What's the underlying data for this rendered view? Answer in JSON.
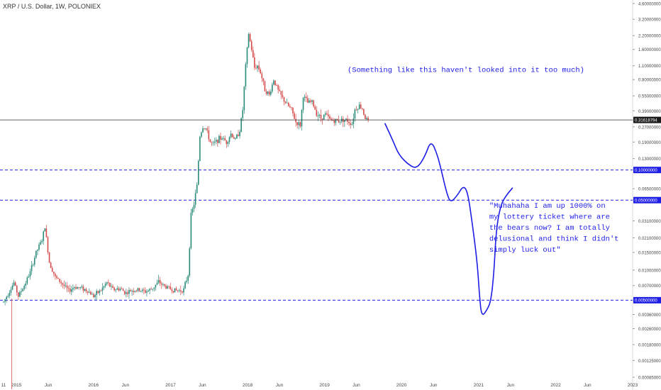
{
  "chart_data": {
    "type": "candlestick",
    "title": "XRP / U.S. Dollar, 1W, POLONIEX",
    "y_scale": "log",
    "ylim": [
      0.00085,
      4.6
    ],
    "xlim": [
      "2014-10-15",
      "2023-01-01"
    ],
    "y_ticks": [
      "4.60000000",
      "3.20000000",
      "2.20000000",
      "1.60000000",
      "1.10000000",
      "0.80000000",
      "0.55000000",
      "0.39000000",
      "0.27000000",
      "0.19000000",
      "0.13000000",
      "0.06500000",
      "0.03100000",
      "0.02100000",
      "0.01500000",
      "0.01000000",
      "0.00700000",
      "0.00360000",
      "0.00260000",
      "0.00180000",
      "0.00125000",
      "0.00085000"
    ],
    "x_ticks": [
      {
        "label": "11",
        "date": "2014-11-01"
      },
      {
        "label": "2015",
        "date": "2015-01-01"
      },
      {
        "label": "Jun",
        "date": "2015-06-01"
      },
      {
        "label": "2016",
        "date": "2016-01-01"
      },
      {
        "label": "Jun",
        "date": "2016-06-01"
      },
      {
        "label": "2017",
        "date": "2017-01-01"
      },
      {
        "label": "Jun",
        "date": "2017-06-01"
      },
      {
        "label": "2018",
        "date": "2018-01-01"
      },
      {
        "label": "Jun",
        "date": "2018-06-01"
      },
      {
        "label": "2019",
        "date": "2019-01-01"
      },
      {
        "label": "Jun",
        "date": "2019-06-01"
      },
      {
        "label": "2020",
        "date": "2020-01-01"
      },
      {
        "label": "Jun",
        "date": "2020-06-01"
      },
      {
        "label": "2021",
        "date": "2021-01-01"
      },
      {
        "label": "Jun",
        "date": "2021-06-01"
      },
      {
        "label": "2022",
        "date": "2022-01-01"
      },
      {
        "label": "Jun",
        "date": "2022-06-01"
      },
      {
        "label": "2023",
        "date": "2023-01-01"
      }
    ],
    "current_price": {
      "value": 0.31618794,
      "label": "0.31618794"
    },
    "horizontal_lines": [
      {
        "value": 0.1,
        "label": "0.10000000",
        "color": "#1e1ee6"
      },
      {
        "value": 0.05,
        "label": "0.05000000",
        "color": "#1e1ee6"
      },
      {
        "value": 0.005,
        "label": "0.00500000",
        "color": "#1e1ee6"
      }
    ],
    "price_path": [
      [
        "2014-11-01",
        0.0048
      ],
      [
        "2014-11-22",
        0.0058
      ],
      [
        "2014-12-20",
        0.0075
      ],
      [
        "2015-01-10",
        0.0055
      ],
      [
        "2015-02-07",
        0.007
      ],
      [
        "2015-03-07",
        0.0095
      ],
      [
        "2015-04-04",
        0.015
      ],
      [
        "2015-05-02",
        0.02
      ],
      [
        "2015-05-16",
        0.027
      ],
      [
        "2015-06-06",
        0.012
      ],
      [
        "2015-07-04",
        0.0085
      ],
      [
        "2015-08-01",
        0.0075
      ],
      [
        "2015-09-05",
        0.0062
      ],
      [
        "2015-10-03",
        0.0068
      ],
      [
        "2015-11-07",
        0.0066
      ],
      [
        "2015-12-05",
        0.0062
      ],
      [
        "2016-01-02",
        0.0055
      ],
      [
        "2016-02-06",
        0.0063
      ],
      [
        "2016-03-05",
        0.0075
      ],
      [
        "2016-04-02",
        0.0064
      ],
      [
        "2016-05-07",
        0.0065
      ],
      [
        "2016-06-04",
        0.0059
      ],
      [
        "2016-07-02",
        0.0063
      ],
      [
        "2016-08-06",
        0.0063
      ],
      [
        "2016-09-03",
        0.0061
      ],
      [
        "2016-10-01",
        0.0064
      ],
      [
        "2016-11-05",
        0.0076
      ],
      [
        "2016-12-03",
        0.0069
      ],
      [
        "2017-01-07",
        0.0064
      ],
      [
        "2017-02-04",
        0.0062
      ],
      [
        "2017-03-04",
        0.0064
      ],
      [
        "2017-03-25",
        0.009
      ],
      [
        "2017-04-08",
        0.035
      ],
      [
        "2017-04-22",
        0.046
      ],
      [
        "2017-05-06",
        0.07
      ],
      [
        "2017-05-20",
        0.22
      ],
      [
        "2017-06-03",
        0.27
      ],
      [
        "2017-06-17",
        0.26
      ],
      [
        "2017-07-08",
        0.19
      ],
      [
        "2017-07-22",
        0.18
      ],
      [
        "2017-08-12",
        0.2
      ],
      [
        "2017-09-02",
        0.21
      ],
      [
        "2017-09-23",
        0.19
      ],
      [
        "2017-10-14",
        0.23
      ],
      [
        "2017-11-04",
        0.2
      ],
      [
        "2017-11-25",
        0.25
      ],
      [
        "2017-12-09",
        0.4
      ],
      [
        "2017-12-23",
        1.1
      ],
      [
        "2018-01-06",
        2.3
      ],
      [
        "2018-01-20",
        1.6
      ],
      [
        "2018-02-03",
        1.05
      ],
      [
        "2018-02-17",
        1.1
      ],
      [
        "2018-03-03",
        0.95
      ],
      [
        "2018-03-24",
        0.64
      ],
      [
        "2018-04-14",
        0.56
      ],
      [
        "2018-05-05",
        0.8
      ],
      [
        "2018-05-26",
        0.62
      ],
      [
        "2018-06-16",
        0.52
      ],
      [
        "2018-07-07",
        0.45
      ],
      [
        "2018-07-28",
        0.4
      ],
      [
        "2018-08-18",
        0.3
      ],
      [
        "2018-09-08",
        0.28
      ],
      [
        "2018-09-22",
        0.55
      ],
      [
        "2018-10-13",
        0.47
      ],
      [
        "2018-11-03",
        0.48
      ],
      [
        "2018-11-24",
        0.37
      ],
      [
        "2018-12-15",
        0.33
      ],
      [
        "2019-01-05",
        0.36
      ],
      [
        "2019-01-26",
        0.32
      ],
      [
        "2019-02-16",
        0.31
      ],
      [
        "2019-03-09",
        0.31
      ],
      [
        "2019-03-30",
        0.32
      ],
      [
        "2019-04-20",
        0.31
      ],
      [
        "2019-05-11",
        0.29
      ],
      [
        "2019-05-25",
        0.4
      ],
      [
        "2019-06-15",
        0.44
      ],
      [
        "2019-06-29",
        0.41
      ],
      [
        "2019-07-13",
        0.33
      ],
      [
        "2019-07-27",
        0.316
      ]
    ],
    "annotations": [
      {
        "text": "(Something like this haven't looked into it too much)",
        "value": 0.95,
        "date": "2019-04-20"
      },
      {
        "lines": [
          "\"Muhahaha I am up 1000% on",
          "my lottery ticket where are",
          "the bears now? I am totally",
          "delusional and think I didn't",
          "simply luck out\""
        ],
        "value": 0.042,
        "date": "2021-02-20"
      }
    ],
    "projection": [
      [
        "2019-10-15",
        0.29
      ],
      [
        "2019-11-20",
        0.2
      ],
      [
        "2019-12-20",
        0.14
      ],
      [
        "2020-02-10",
        0.11
      ],
      [
        "2020-03-15",
        0.104
      ],
      [
        "2020-04-20",
        0.135
      ],
      [
        "2020-05-20",
        0.2
      ],
      [
        "2020-06-20",
        0.14
      ],
      [
        "2020-07-10",
        0.095
      ],
      [
        "2020-08-01",
        0.06
      ],
      [
        "2020-08-20",
        0.047
      ],
      [
        "2020-09-20",
        0.055
      ],
      [
        "2020-10-20",
        0.07
      ],
      [
        "2020-11-10",
        0.06
      ],
      [
        "2020-12-01",
        0.03
      ],
      [
        "2020-12-25",
        0.012
      ],
      [
        "2021-01-05",
        0.0055
      ],
      [
        "2021-01-15",
        0.0034
      ],
      [
        "2021-02-10",
        0.004
      ],
      [
        "2021-03-01",
        0.005
      ],
      [
        "2021-03-15",
        0.01
      ],
      [
        "2021-03-25",
        0.025
      ],
      [
        "2021-04-15",
        0.045
      ],
      [
        "2021-05-15",
        0.057
      ],
      [
        "2021-06-10",
        0.066
      ]
    ],
    "colors": {
      "up": "#2a8a7a",
      "down": "#d44a4a",
      "lines": "#1e1ee6",
      "drawing": "#1e1ee6",
      "current": "#333333",
      "text": "#333333"
    }
  }
}
